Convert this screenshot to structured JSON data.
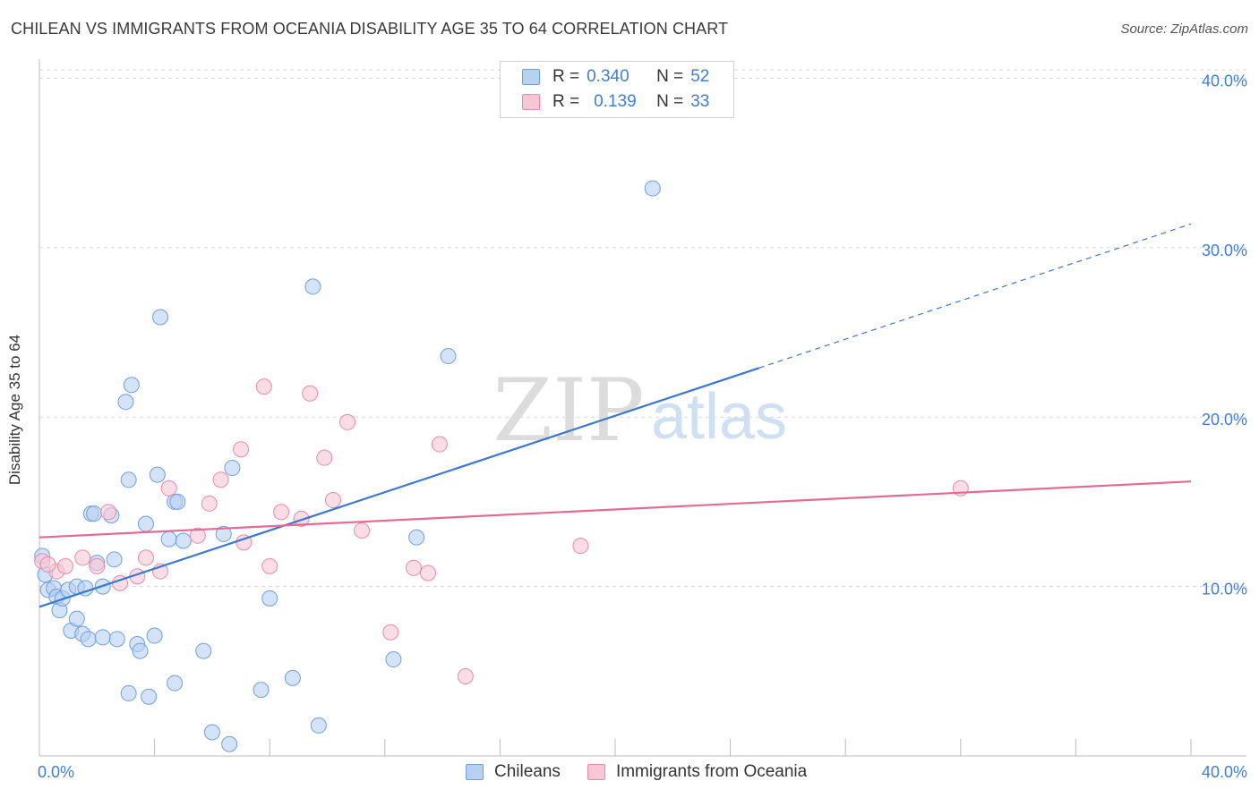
{
  "title": "CHILEAN VS IMMIGRANTS FROM OCEANIA DISABILITY AGE 35 TO 64 CORRELATION CHART",
  "source": "Source: ZipAtlas.com",
  "watermark": {
    "zip": "ZIP",
    "atlas": "atlas"
  },
  "legend": {
    "r_label": "R =",
    "n_label": "N =",
    "series": [
      {
        "name": "Chileans",
        "r": "0.340",
        "n": "52",
        "fill": "#b8d1f3",
        "stroke": "#6f9fdc",
        "line": "#3a78d4"
      },
      {
        "name": "Immigrants from Oceania",
        "r": "0.139",
        "n": "33",
        "fill": "#f9c6d6",
        "stroke": "#e98aab",
        "line": "#e36a95"
      }
    ]
  },
  "colors": {
    "value_text": "#3f7fcf",
    "grid": "#d6d6d6",
    "axis": "#bbbbbb"
  },
  "chart_data": {
    "type": "scatter",
    "title": "CHILEAN VS IMMIGRANTS FROM OCEANIA DISABILITY AGE 35 TO 64 CORRELATION CHART",
    "xlabel": "",
    "ylabel": "Disability Age 35 to 64",
    "xlim": [
      0,
      40
    ],
    "ylim": [
      0,
      40.5
    ],
    "x_tick_labels": [
      "0.0%",
      "40.0%"
    ],
    "y_ticks": [
      10,
      20,
      30,
      40
    ],
    "y_tick_labels": [
      "10.0%",
      "20.0%",
      "30.0%",
      "40.0%"
    ],
    "x_minor_ticks": [
      0,
      4,
      8,
      12,
      16,
      20,
      24,
      28,
      32,
      36,
      40
    ],
    "series": [
      {
        "name": "Chileans",
        "trend": {
          "x0": 0,
          "y0": 8.8,
          "x1": 25,
          "y1": 22.9,
          "x_dash_end": 40,
          "y_dash_end": 31.4
        },
        "points": [
          [
            0.1,
            11.8
          ],
          [
            0.2,
            10.7
          ],
          [
            0.3,
            9.8
          ],
          [
            0.5,
            9.9
          ],
          [
            0.6,
            9.4
          ],
          [
            0.7,
            8.6
          ],
          [
            0.8,
            9.3
          ],
          [
            1.0,
            9.8
          ],
          [
            1.1,
            7.4
          ],
          [
            1.3,
            8.1
          ],
          [
            1.3,
            10.0
          ],
          [
            1.5,
            7.2
          ],
          [
            1.6,
            9.9
          ],
          [
            1.7,
            6.9
          ],
          [
            1.8,
            14.3
          ],
          [
            1.9,
            14.3
          ],
          [
            2.0,
            11.4
          ],
          [
            2.2,
            10.0
          ],
          [
            2.2,
            7.0
          ],
          [
            2.5,
            14.2
          ],
          [
            2.6,
            11.6
          ],
          [
            2.7,
            6.9
          ],
          [
            3.0,
            20.9
          ],
          [
            3.1,
            16.3
          ],
          [
            3.1,
            3.7
          ],
          [
            3.2,
            21.9
          ],
          [
            3.4,
            6.6
          ],
          [
            3.5,
            6.2
          ],
          [
            3.7,
            13.7
          ],
          [
            3.8,
            3.5
          ],
          [
            4.0,
            7.1
          ],
          [
            4.1,
            16.6
          ],
          [
            4.2,
            25.9
          ],
          [
            4.5,
            12.8
          ],
          [
            4.7,
            4.3
          ],
          [
            4.7,
            15.0
          ],
          [
            4.8,
            15.0
          ],
          [
            5.0,
            12.7
          ],
          [
            5.7,
            6.2
          ],
          [
            6.0,
            1.4
          ],
          [
            6.6,
            0.7
          ],
          [
            6.7,
            17.0
          ],
          [
            7.7,
            3.9
          ],
          [
            8.0,
            9.3
          ],
          [
            8.8,
            4.6
          ],
          [
            9.5,
            27.7
          ],
          [
            9.7,
            1.8
          ],
          [
            12.3,
            5.7
          ],
          [
            13.1,
            12.9
          ],
          [
            14.2,
            23.6
          ],
          [
            21.3,
            33.5
          ],
          [
            6.4,
            13.1
          ]
        ]
      },
      {
        "name": "Immigrants from Oceania",
        "trend": {
          "x0": 0,
          "y0": 12.9,
          "x1": 40,
          "y1": 16.2
        },
        "points": [
          [
            0.1,
            11.5
          ],
          [
            0.6,
            10.9
          ],
          [
            0.9,
            11.2
          ],
          [
            1.5,
            11.7
          ],
          [
            2.0,
            11.2
          ],
          [
            2.4,
            14.4
          ],
          [
            2.8,
            10.2
          ],
          [
            3.4,
            10.6
          ],
          [
            3.7,
            11.7
          ],
          [
            4.2,
            10.9
          ],
          [
            4.5,
            15.8
          ],
          [
            5.5,
            13.0
          ],
          [
            5.9,
            14.9
          ],
          [
            6.3,
            16.3
          ],
          [
            7.0,
            18.1
          ],
          [
            7.1,
            12.6
          ],
          [
            7.8,
            21.8
          ],
          [
            8.0,
            11.2
          ],
          [
            8.4,
            14.4
          ],
          [
            9.1,
            14.0
          ],
          [
            9.4,
            21.4
          ],
          [
            9.9,
            17.6
          ],
          [
            10.2,
            15.1
          ],
          [
            10.7,
            19.7
          ],
          [
            11.2,
            13.3
          ],
          [
            12.2,
            7.3
          ],
          [
            13.0,
            11.1
          ],
          [
            13.5,
            10.8
          ],
          [
            13.9,
            18.4
          ],
          [
            14.8,
            4.7
          ],
          [
            18.8,
            12.4
          ],
          [
            32.0,
            15.8
          ],
          [
            0.3,
            11.3
          ]
        ]
      }
    ]
  }
}
